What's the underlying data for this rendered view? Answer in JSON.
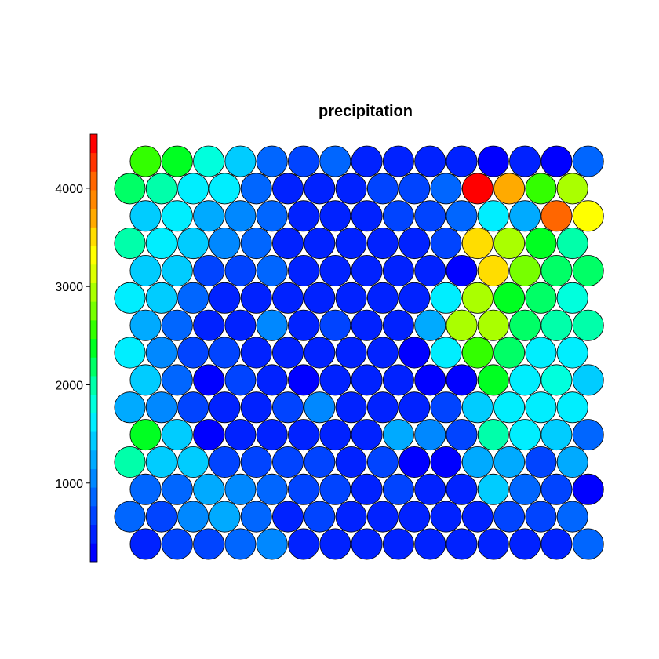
{
  "chart_data": {
    "type": "heatmap",
    "subtype": "hexagonal-som-property-map",
    "title": "precipitation",
    "grid": {
      "rows": 15,
      "cols": 15,
      "topology": "hexagonal",
      "row_order": "bottom-to-top"
    },
    "palette": [
      "#0000FF",
      "#0022FF",
      "#0044FF",
      "#0066FF",
      "#0088FF",
      "#00AAFF",
      "#00CCFF",
      "#00EEFF",
      "#00FFDD",
      "#00FFAA",
      "#00FF66",
      "#00FF22",
      "#33FF00",
      "#77FF00",
      "#AAFF00",
      "#DDFF00",
      "#FFFF00",
      "#FFDD00",
      "#FFAA00",
      "#FF8800",
      "#FF6600",
      "#FF3300",
      "#FF0000"
    ],
    "colorbar": {
      "range": [
        200,
        4550
      ],
      "ticks": [
        1000,
        2000,
        3000,
        4000
      ],
      "tick_labels": [
        "1000",
        "2000",
        "3000",
        "4000"
      ],
      "position": "left"
    },
    "cell_color_index_rows": [
      [
        1,
        2,
        2,
        3,
        4,
        1,
        1,
        1,
        1,
        1,
        1,
        1,
        1,
        1,
        3
      ],
      [
        3,
        2,
        4,
        5,
        3,
        1,
        2,
        1,
        1,
        1,
        1,
        1,
        2,
        2,
        3
      ],
      [
        3,
        3,
        5,
        4,
        3,
        2,
        2,
        1,
        2,
        1,
        1,
        6,
        3,
        2,
        0
      ],
      [
        9,
        6,
        6,
        2,
        2,
        2,
        2,
        1,
        2,
        0,
        0,
        5,
        5,
        2,
        5
      ],
      [
        11,
        6,
        0,
        1,
        1,
        1,
        1,
        1,
        5,
        4,
        2,
        9,
        7,
        6,
        3
      ],
      [
        5,
        4,
        2,
        1,
        1,
        2,
        4,
        1,
        1,
        1,
        2,
        6,
        7,
        7,
        7
      ],
      [
        6,
        3,
        0,
        2,
        1,
        0,
        1,
        1,
        1,
        0,
        0,
        11,
        7,
        8,
        6
      ],
      [
        7,
        4,
        2,
        2,
        1,
        1,
        1,
        1,
        1,
        0,
        7,
        12,
        10,
        7,
        7
      ],
      [
        5,
        3,
        1,
        1,
        4,
        1,
        2,
        1,
        1,
        5,
        14,
        14,
        10,
        9,
        9
      ],
      [
        7,
        6,
        3,
        1,
        1,
        1,
        1,
        1,
        1,
        1,
        7,
        14,
        11,
        10,
        8
      ],
      [
        6,
        6,
        2,
        2,
        3,
        1,
        1,
        1,
        1,
        1,
        0,
        17,
        13,
        10,
        10
      ],
      [
        9,
        7,
        6,
        4,
        3,
        1,
        1,
        1,
        1,
        1,
        2,
        17,
        14,
        11,
        9
      ],
      [
        6,
        7,
        5,
        4,
        3,
        1,
        1,
        1,
        2,
        2,
        3,
        7,
        5,
        20,
        16
      ],
      [
        10,
        9,
        7,
        7,
        3,
        1,
        1,
        1,
        2,
        2,
        3,
        22,
        18,
        12,
        14
      ],
      [
        12,
        11,
        8,
        6,
        3,
        2,
        3,
        1,
        1,
        1,
        1,
        0,
        1,
        0,
        3
      ]
    ]
  }
}
